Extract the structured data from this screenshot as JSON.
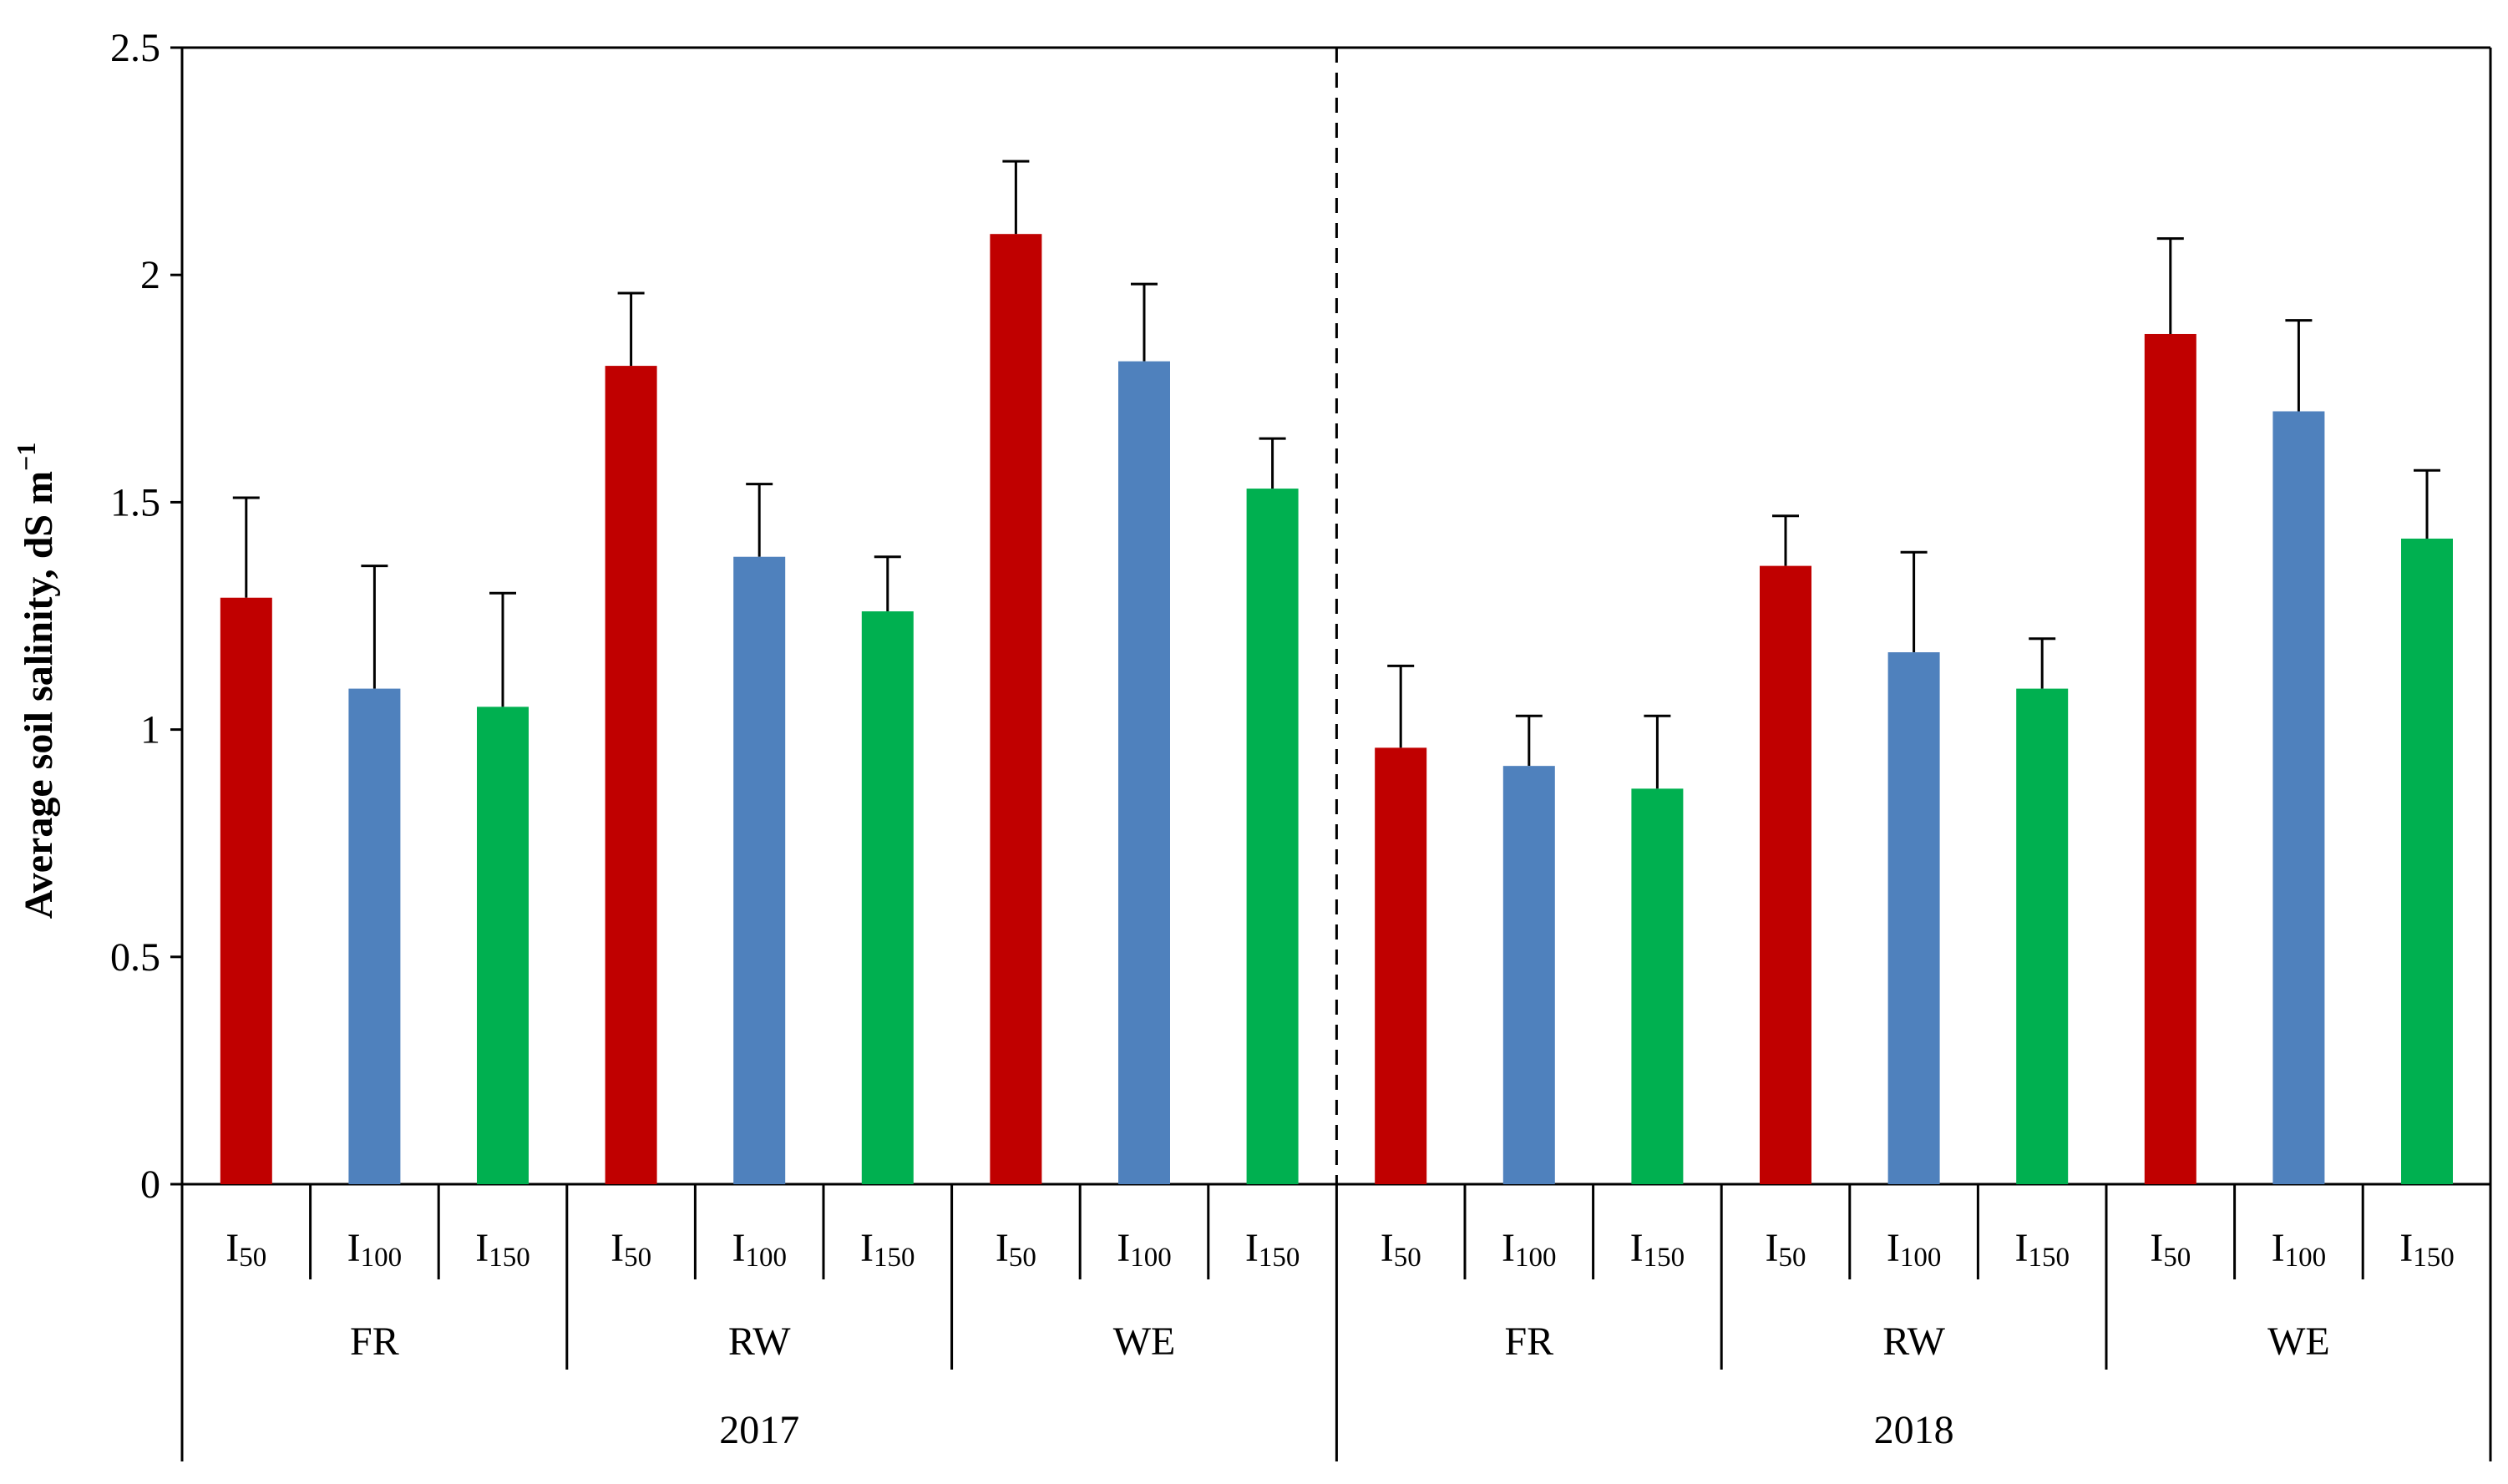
{
  "chart_data": {
    "type": "bar",
    "title": "",
    "xlabel": "",
    "ylabel": "Average soil salinity, dS m",
    "ylabel_superscript": "−1",
    "ylim": [
      0,
      2.5
    ],
    "yticks": [
      0,
      0.5,
      1,
      1.5,
      2,
      2.5
    ],
    "ytick_labels": [
      "0",
      "0.5",
      "1",
      "1.5",
      "2",
      "2.5"
    ],
    "grid": false,
    "legend": "none",
    "years": [
      "2017",
      "2018"
    ],
    "groups": [
      "FR",
      "RW",
      "WE"
    ],
    "treatments": [
      {
        "base": "I",
        "sub": "50",
        "color": "#C00000"
      },
      {
        "base": "I",
        "sub": "100",
        "color": "#4F81BD"
      },
      {
        "base": "I",
        "sub": "150",
        "color": "#00B050"
      }
    ],
    "values": [
      [
        [
          1.29,
          1.09,
          1.05
        ],
        [
          1.8,
          1.38,
          1.26
        ],
        [
          2.09,
          1.81,
          1.53
        ]
      ],
      [
        [
          0.96,
          0.92,
          0.87
        ],
        [
          1.36,
          1.17,
          1.09
        ],
        [
          1.87,
          1.7,
          1.42
        ]
      ]
    ],
    "error_tops": [
      [
        [
          1.51,
          1.36,
          1.3
        ],
        [
          1.96,
          1.54,
          1.38
        ],
        [
          2.25,
          1.98,
          1.64
        ]
      ],
      [
        [
          1.14,
          1.03,
          1.03
        ],
        [
          1.47,
          1.39,
          1.2
        ],
        [
          2.08,
          1.9,
          1.57
        ]
      ]
    ]
  }
}
